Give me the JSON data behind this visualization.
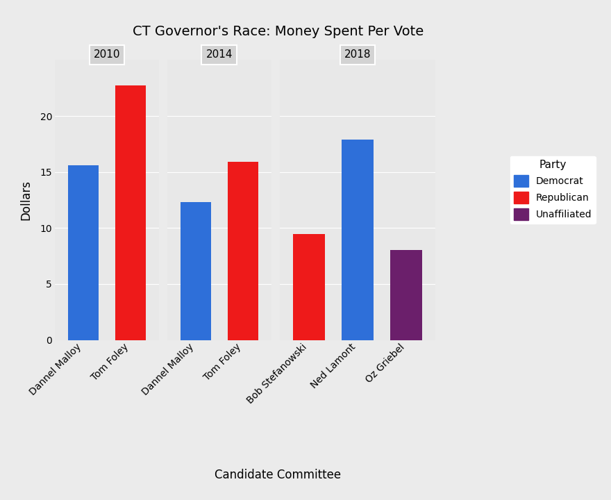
{
  "title": "CT Governor's Race: Money Spent Per Vote",
  "xlabel": "Candidate Committee",
  "ylabel": "Dollars",
  "facets": [
    {
      "year": "2010",
      "candidates": [
        "Dannel Malloy",
        "Tom Foley"
      ],
      "values": [
        15.6,
        22.7
      ],
      "colors": [
        "#2E6FD9",
        "#EE1A1A"
      ]
    },
    {
      "year": "2014",
      "candidates": [
        "Dannel Malloy",
        "Tom Foley"
      ],
      "values": [
        12.3,
        15.9
      ],
      "colors": [
        "#2E6FD9",
        "#EE1A1A"
      ]
    },
    {
      "year": "2018",
      "candidates": [
        "Bob Stefanowski",
        "Ned Lamont",
        "Oz Griebel"
      ],
      "values": [
        9.45,
        17.9,
        8.05
      ],
      "colors": [
        "#EE1A1A",
        "#2E6FD9",
        "#6B1F6B"
      ]
    }
  ],
  "legend_title": "Party",
  "legend_entries": [
    {
      "label": "Democrat",
      "color": "#2E6FD9"
    },
    {
      "label": "Republican",
      "color": "#EE1A1A"
    },
    {
      "label": "Unaffiliated",
      "color": "#6B1F6B"
    }
  ],
  "ylim": [
    0,
    25
  ],
  "yticks": [
    0,
    5,
    10,
    15,
    20
  ],
  "background_color": "#EBEBEB",
  "panel_bg_color": "#E8E8E8",
  "grid_color": "#FFFFFF",
  "facet_label_bg": "#D3D3D3",
  "title_fontsize": 14,
  "axis_label_fontsize": 12,
  "tick_fontsize": 10,
  "facet_label_fontsize": 11
}
